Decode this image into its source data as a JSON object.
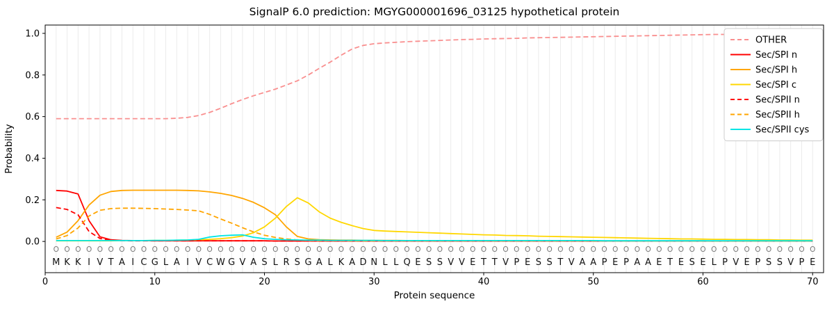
{
  "chart_data": {
    "type": "line",
    "title": "SignalP 6.0 prediction: MGYG000001696_03125 hypothetical protein",
    "xlabel": "Protein sequence",
    "ylabel": "Probability",
    "xlim": [
      0,
      71
    ],
    "ylim": [
      -0.15,
      1.04
    ],
    "xticks": [
      0,
      10,
      20,
      30,
      40,
      50,
      60,
      70
    ],
    "yticks": [
      0.0,
      0.2,
      0.4,
      0.6,
      0.8,
      1.0
    ],
    "grid": "vertical-line-per-residue",
    "legend_position": "upper right",
    "position_marker": "O",
    "x": [
      1,
      2,
      3,
      4,
      5,
      6,
      7,
      8,
      9,
      10,
      11,
      12,
      13,
      14,
      15,
      16,
      17,
      18,
      19,
      20,
      21,
      22,
      23,
      24,
      25,
      26,
      27,
      28,
      29,
      30,
      31,
      32,
      33,
      34,
      35,
      36,
      37,
      38,
      39,
      40,
      41,
      42,
      43,
      44,
      45,
      46,
      47,
      48,
      49,
      50,
      51,
      52,
      53,
      54,
      55,
      56,
      57,
      58,
      59,
      60,
      61,
      62,
      63,
      64,
      65,
      66,
      67,
      68,
      69,
      70
    ],
    "sequence": [
      "M",
      "K",
      "K",
      "I",
      "V",
      "T",
      "A",
      "I",
      "C",
      "G",
      "L",
      "A",
      "I",
      "V",
      "C",
      "W",
      "G",
      "V",
      "A",
      "S",
      "L",
      "R",
      "S",
      "G",
      "A",
      "L",
      "K",
      "A",
      "D",
      "N",
      "L",
      "L",
      "Q",
      "E",
      "S",
      "S",
      "V",
      "V",
      "E",
      "T",
      "T",
      "V",
      "P",
      "E",
      "S",
      "S",
      "T",
      "V",
      "A",
      "A",
      "P",
      "E",
      "P",
      "A",
      "A",
      "E",
      "T",
      "E",
      "S",
      "E",
      "L",
      "P",
      "V",
      "E",
      "P",
      "S",
      "S",
      "V",
      "P",
      "E"
    ],
    "series": [
      {
        "name": "OTHER",
        "color": "#f98f8f",
        "dashed": true,
        "values": [
          0.59,
          0.59,
          0.59,
          0.59,
          0.59,
          0.59,
          0.59,
          0.59,
          0.59,
          0.59,
          0.59,
          0.592,
          0.596,
          0.605,
          0.62,
          0.64,
          0.662,
          0.682,
          0.7,
          0.716,
          0.732,
          0.752,
          0.772,
          0.8,
          0.832,
          0.862,
          0.895,
          0.925,
          0.942,
          0.95,
          0.954,
          0.957,
          0.96,
          0.962,
          0.964,
          0.966,
          0.968,
          0.97,
          0.971,
          0.973,
          0.974,
          0.975,
          0.976,
          0.978,
          0.979,
          0.98,
          0.981,
          0.982,
          0.983,
          0.984,
          0.985,
          0.986,
          0.987,
          0.988,
          0.989,
          0.99,
          0.991,
          0.992,
          0.993,
          0.994,
          0.995,
          0.995,
          0.996,
          0.996,
          0.997,
          0.997,
          0.998,
          0.998,
          0.999,
          0.999
        ]
      },
      {
        "name": "Sec/SPI n",
        "color": "#ff0000",
        "dashed": false,
        "values": [
          0.245,
          0.242,
          0.228,
          0.1,
          0.022,
          0.008,
          0.005,
          0.004,
          0.004,
          0.003,
          0.003,
          0.003,
          0.003,
          0.003,
          0.003,
          0.003,
          0.003,
          0.003,
          0.003,
          0.003,
          0.002,
          0.002,
          0.002,
          0.002,
          0.002,
          0.002,
          0.002,
          0.002,
          0.002,
          0.002,
          0.002,
          0.002,
          0.002,
          0.002,
          0.002,
          0.002,
          0.002,
          0.002,
          0.002,
          0.002,
          0.002,
          0.002,
          0.002,
          0.002,
          0.002,
          0.002,
          0.002,
          0.002,
          0.002,
          0.002,
          0.002,
          0.002,
          0.002,
          0.002,
          0.002,
          0.002,
          0.002,
          0.002,
          0.002,
          0.002,
          0.002,
          0.002,
          0.002,
          0.002,
          0.002,
          0.002,
          0.002,
          0.002,
          0.002,
          0.002
        ]
      },
      {
        "name": "Sec/SPI h",
        "color": "#ffa500",
        "dashed": false,
        "values": [
          0.02,
          0.045,
          0.1,
          0.175,
          0.222,
          0.24,
          0.245,
          0.246,
          0.246,
          0.246,
          0.246,
          0.246,
          0.245,
          0.243,
          0.238,
          0.231,
          0.221,
          0.207,
          0.188,
          0.162,
          0.128,
          0.07,
          0.024,
          0.012,
          0.008,
          0.007,
          0.006,
          0.006,
          0.005,
          0.005,
          0.005,
          0.005,
          0.004,
          0.004,
          0.004,
          0.004,
          0.004,
          0.004,
          0.004,
          0.004,
          0.003,
          0.003,
          0.003,
          0.003,
          0.003,
          0.003,
          0.003,
          0.003,
          0.003,
          0.003,
          0.003,
          0.003,
          0.003,
          0.003,
          0.003,
          0.003,
          0.003,
          0.003,
          0.003,
          0.003,
          0.002,
          0.002,
          0.002,
          0.002,
          0.002,
          0.002,
          0.002,
          0.002,
          0.002,
          0.002
        ]
      },
      {
        "name": "Sec/SPI c",
        "color": "#ffd700",
        "dashed": false,
        "values": [
          0.003,
          0.003,
          0.003,
          0.003,
          0.003,
          0.003,
          0.004,
          0.004,
          0.004,
          0.005,
          0.005,
          0.006,
          0.007,
          0.008,
          0.01,
          0.013,
          0.018,
          0.026,
          0.042,
          0.07,
          0.112,
          0.168,
          0.21,
          0.185,
          0.142,
          0.112,
          0.092,
          0.076,
          0.062,
          0.053,
          0.05,
          0.048,
          0.046,
          0.044,
          0.042,
          0.04,
          0.038,
          0.036,
          0.034,
          0.032,
          0.031,
          0.029,
          0.028,
          0.027,
          0.025,
          0.024,
          0.023,
          0.022,
          0.021,
          0.02,
          0.019,
          0.018,
          0.017,
          0.016,
          0.015,
          0.014,
          0.013,
          0.012,
          0.012,
          0.011,
          0.01,
          0.01,
          0.009,
          0.009,
          0.008,
          0.008,
          0.007,
          0.007,
          0.006,
          0.006
        ]
      },
      {
        "name": "Sec/SPII n",
        "color": "#ff0000",
        "dashed": true,
        "values": [
          0.163,
          0.154,
          0.128,
          0.048,
          0.014,
          0.006,
          0.004,
          0.003,
          0.003,
          0.003,
          0.003,
          0.003,
          0.003,
          0.003,
          0.003,
          0.003,
          0.003,
          0.003,
          0.003,
          0.003,
          0.002,
          0.002,
          0.002,
          0.002,
          0.002,
          0.002,
          0.002,
          0.002,
          0.002,
          0.002,
          0.002,
          0.002,
          0.002,
          0.002,
          0.002,
          0.002,
          0.002,
          0.002,
          0.002,
          0.002,
          0.002,
          0.002,
          0.002,
          0.002,
          0.002,
          0.002,
          0.002,
          0.002,
          0.002,
          0.002,
          0.002,
          0.002,
          0.002,
          0.002,
          0.002,
          0.002,
          0.002,
          0.002,
          0.002,
          0.002,
          0.002,
          0.002,
          0.002,
          0.002,
          0.002,
          0.002,
          0.002,
          0.002,
          0.002,
          0.002
        ]
      },
      {
        "name": "Sec/SPII h",
        "color": "#ffa500",
        "dashed": true,
        "values": [
          0.012,
          0.028,
          0.065,
          0.122,
          0.15,
          0.158,
          0.16,
          0.16,
          0.159,
          0.158,
          0.156,
          0.154,
          0.151,
          0.147,
          0.13,
          0.108,
          0.088,
          0.066,
          0.046,
          0.03,
          0.019,
          0.012,
          0.007,
          0.005,
          0.004,
          0.004,
          0.004,
          0.003,
          0.003,
          0.003,
          0.003,
          0.003,
          0.003,
          0.003,
          0.003,
          0.003,
          0.003,
          0.003,
          0.003,
          0.003,
          0.003,
          0.003,
          0.003,
          0.003,
          0.003,
          0.003,
          0.003,
          0.003,
          0.003,
          0.003,
          0.002,
          0.002,
          0.002,
          0.002,
          0.002,
          0.002,
          0.002,
          0.002,
          0.002,
          0.002,
          0.002,
          0.002,
          0.002,
          0.002,
          0.002,
          0.002,
          0.002,
          0.002,
          0.002,
          0.002
        ]
      },
      {
        "name": "Sec/SPII cys",
        "color": "#00e5e5",
        "dashed": false,
        "values": [
          0.004,
          0.004,
          0.004,
          0.004,
          0.004,
          0.004,
          0.004,
          0.004,
          0.004,
          0.005,
          0.005,
          0.006,
          0.007,
          0.01,
          0.021,
          0.027,
          0.03,
          0.032,
          0.02,
          0.013,
          0.01,
          0.008,
          0.007,
          0.006,
          0.006,
          0.005,
          0.005,
          0.005,
          0.005,
          0.005,
          0.004,
          0.004,
          0.004,
          0.004,
          0.004,
          0.004,
          0.004,
          0.004,
          0.004,
          0.004,
          0.004,
          0.004,
          0.004,
          0.004,
          0.004,
          0.004,
          0.004,
          0.004,
          0.004,
          0.004,
          0.003,
          0.003,
          0.003,
          0.003,
          0.003,
          0.003,
          0.003,
          0.003,
          0.003,
          0.003,
          0.003,
          0.003,
          0.003,
          0.003,
          0.003,
          0.003,
          0.003,
          0.003,
          0.003,
          0.003
        ]
      }
    ]
  }
}
